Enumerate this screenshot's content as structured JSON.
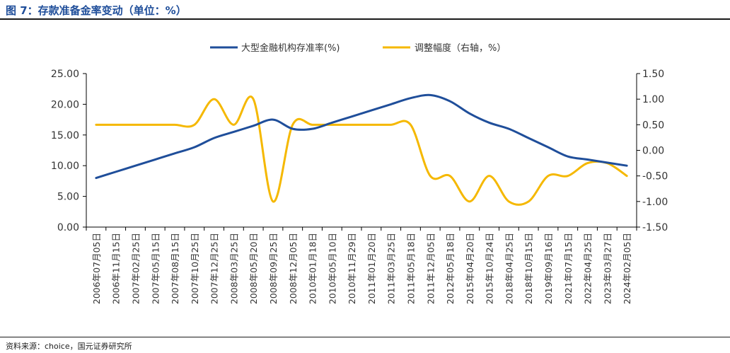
{
  "figure": {
    "title": "图 7：存款准备金率变动（单位：%）",
    "source": "资料来源：choice，国元证券研究所"
  },
  "colors": {
    "left_series": "#1f4e9a",
    "right_series": "#f5b800",
    "title": "#1f4e9a"
  },
  "chart_data": {
    "type": "line",
    "categories": [
      "2006年07月05日",
      "2006年11月15日",
      "2007年02月25日",
      "2007年05月15日",
      "2007年08月15日",
      "2007年10月25日",
      "2007年12月25日",
      "2008年03月25日",
      "2008年05月20日",
      "2008年09月25日",
      "2008年12月05日",
      "2010年01月18日",
      "2010年05月10日",
      "2010年11月29日",
      "2011年01月20日",
      "2011年03月25日",
      "2011年05月18日",
      "2011年12月05日",
      "2012年05月18日",
      "2015年04月20日",
      "2015年10月24日",
      "2018年04月25日",
      "2018年10月15日",
      "2019年09月16日",
      "2021年07月15日",
      "2022年04月25日",
      "2023年03月27日",
      "2024年02月05日"
    ],
    "series": [
      {
        "name": "大型金融机构存准率(%)",
        "axis": "left",
        "values": [
          8.0,
          9.0,
          10.0,
          11.0,
          12.0,
          13.0,
          14.5,
          15.5,
          16.5,
          17.5,
          16.0,
          16.0,
          17.0,
          18.0,
          19.0,
          20.0,
          21.0,
          21.5,
          20.5,
          18.5,
          17.0,
          16.0,
          14.5,
          13.0,
          11.5,
          11.0,
          10.5,
          10.0
        ]
      },
      {
        "name": "调整幅度（右轴，%）",
        "axis": "right",
        "values": [
          0.5,
          0.5,
          0.5,
          0.5,
          0.5,
          0.5,
          1.0,
          0.5,
          1.0,
          -1.0,
          0.5,
          0.5,
          0.5,
          0.5,
          0.5,
          0.5,
          0.5,
          -0.5,
          -0.5,
          -1.0,
          -0.5,
          -1.0,
          -1.0,
          -0.5,
          -0.5,
          -0.25,
          -0.25,
          -0.5
        ]
      }
    ],
    "left_axis": {
      "ylim": [
        0,
        25
      ],
      "ticks": [
        "0.00",
        "5.00",
        "10.00",
        "15.00",
        "20.00",
        "25.00"
      ]
    },
    "right_axis": {
      "ylim": [
        -1.5,
        1.5
      ],
      "ticks": [
        "-1.50",
        "-1.00",
        "-0.50",
        "0.00",
        "0.50",
        "1.00",
        "1.50"
      ]
    },
    "legend": {
      "position": "top-center",
      "labels": [
        "大型金融机构存准率(%)",
        "调整幅度（右轴，%）"
      ]
    }
  }
}
